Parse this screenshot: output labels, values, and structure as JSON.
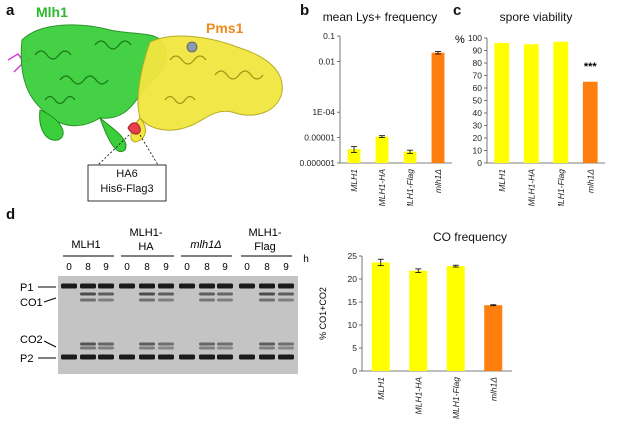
{
  "panels": {
    "a": "a",
    "b": "b",
    "c": "c",
    "d": "d"
  },
  "panel_a": {
    "protein1": "Mlh1",
    "protein2": "Pms1",
    "protein1_color": "#33cc33",
    "protein2_color": "#f2e640",
    "callout_line1": "HA6",
    "callout_line2": "His6-Flag3"
  },
  "chart_data": [
    {
      "type": "bar",
      "title": "mean Lys+ frequency",
      "categories": [
        "MLH1",
        "MLH1-HA",
        "MLH1-Flag",
        "mlh1Δ"
      ],
      "values": [
        3.5e-06,
        1.1e-05,
        2.8e-06,
        0.022
      ],
      "errors": [
        9e-07,
        9e-07,
        4e-07,
        0.0025
      ],
      "colors": [
        "#ffff00",
        "#ffff00",
        "#ffff00",
        "#ff7f0e"
      ],
      "yscale": "log",
      "ylim": [
        1e-06,
        0.1
      ],
      "yticks": [
        "0.1",
        "0.01",
        "1E-04",
        "0.00001",
        "0.000001"
      ],
      "ytick_values": [
        0.1,
        0.01,
        0.0001,
        1e-05,
        1e-06
      ]
    },
    {
      "type": "bar",
      "title": "spore viability",
      "ylabel": "%",
      "categories": [
        "MLH1",
        "MLH1-HA",
        "MLH1-Flag",
        "mlh1Δ"
      ],
      "values": [
        96,
        95,
        97,
        65
      ],
      "colors": [
        "#ffff00",
        "#ffff00",
        "#ffff00",
        "#ff7f0e"
      ],
      "ylim": [
        0,
        100
      ],
      "yticks": [
        0,
        10,
        20,
        30,
        40,
        50,
        60,
        70,
        80,
        90,
        100
      ],
      "annotation": "***"
    },
    {
      "type": "bar",
      "title": "CO frequency",
      "ylabel": "% CO1+CO2",
      "categories": [
        "MLH1",
        "MLH1-HA",
        "MLH1-Flag",
        "mlh1Δ"
      ],
      "values": [
        23.6,
        21.8,
        22.8,
        14.3
      ],
      "errors": [
        0.7,
        0.4,
        0.2,
        0.1
      ],
      "colors": [
        "#ffff00",
        "#ffff00",
        "#ffff00",
        "#ff7f0e"
      ],
      "ylim": [
        0,
        25
      ],
      "yticks": [
        0,
        5,
        10,
        15,
        20,
        25
      ]
    }
  ],
  "gel": {
    "groups": [
      {
        "line1": "MLH1",
        "line2": "",
        "italic": false
      },
      {
        "line1": "MLH1-",
        "line2": "HA",
        "italic": false
      },
      {
        "line1": "mlh1Δ",
        "line2": "",
        "italic": true
      },
      {
        "line1": "MLH1-",
        "line2": "Flag",
        "italic": false
      }
    ],
    "lanes": [
      "0",
      "8",
      "9"
    ],
    "time_unit": "h",
    "band_labels": {
      "p1": "P1",
      "co1": "CO1",
      "co2": "CO2",
      "p2": "P2"
    }
  }
}
